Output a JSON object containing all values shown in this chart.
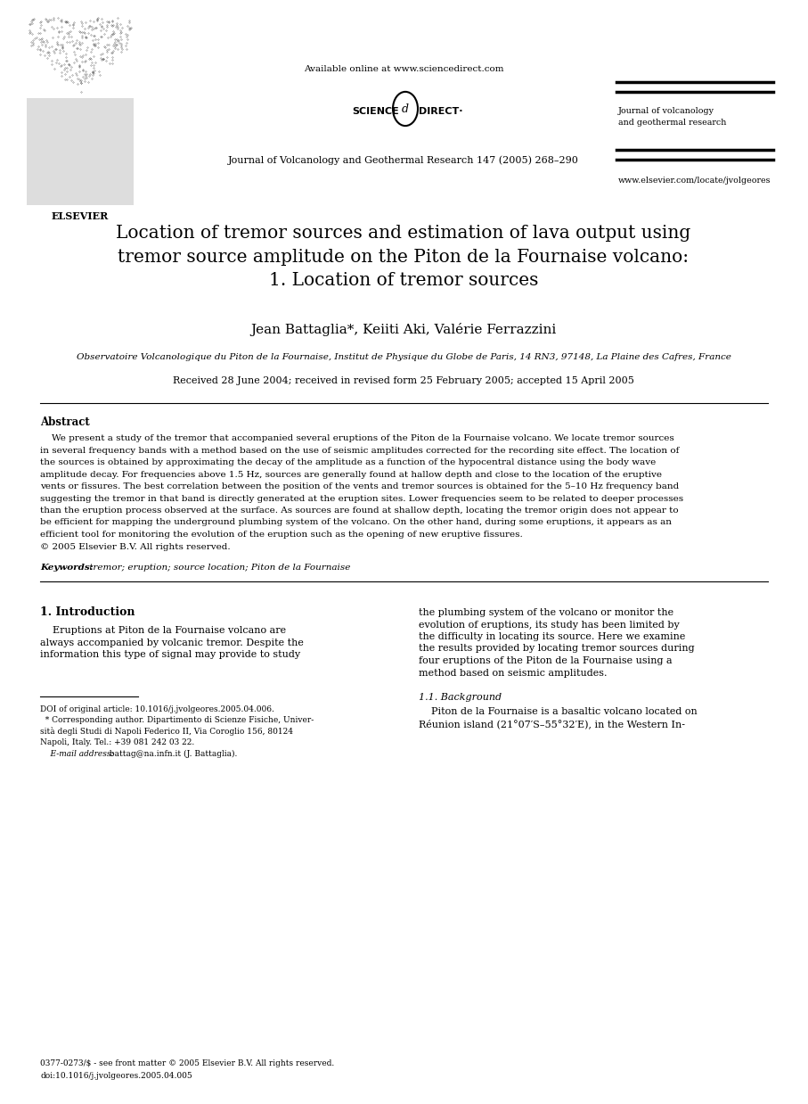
{
  "bg_color": "#ffffff",
  "header": {
    "available_online": "Available online at www.sciencedirect.com",
    "journal_line": "Journal of Volcanology and Geothermal Research 147 (2005) 268–290",
    "journal_name_right": "Journal of volcanology\nand geothermal research",
    "website": "www.elsevier.com/locate/jvolgeores"
  },
  "title": "Location of tremor sources and estimation of lava output using\ntremor source amplitude on the Piton de la Fournaise volcano:\n1. Location of tremor sources",
  "authors": "Jean Battaglia*, Keiiti Aki, Valérie Ferrazzini",
  "affiliation": "Observatoire Volcanologique du Piton de la Fournaise, Institut de Physique du Globe de Paris, 14 RN3, 97148, La Plaine des Cafres, France",
  "received": "Received 28 June 2004; received in revised form 25 February 2005; accepted 15 April 2005",
  "abstract_title": "Abstract",
  "abstract_text": "    We present a study of the tremor that accompanied several eruptions of the Piton de la Fournaise volcano. We locate tremor sources in several frequency bands with a method based on the use of seismic amplitudes corrected for the recording site effect. The location of the sources is obtained by approximating the decay of the amplitude as a function of the hypocentral distance using the body wave amplitude decay. For frequencies above 1.5 Hz, sources are generally found at hallow depth and close to the location of the eruptive vents or fissures. The best correlation between the position of the vents and tremor sources is obtained for the 5–10 Hz frequency band suggesting the tremor in that band is directly generated at the eruption sites. Lower frequencies seem to be related to deeper processes than the eruption process observed at the surface. As sources are found at shallow depth, locating the tremor origin does not appear to be efficient for mapping the underground plumbing system of the volcano. On the other hand, during some eruptions, it appears as an efficient tool for monitoring the evolution of the eruption such as the opening of new eruptive fissures.\n© 2005 Elsevier B.V. All rights reserved.",
  "keywords_label": "Keywords:",
  "keywords_text": " tremor; eruption; source location; Piton de la Fournaise",
  "section1_title": "1. Introduction",
  "intro_col1_line1": "    Eruptions at Piton de la Fournaise volcano are",
  "intro_col1_line2": "always accompanied by volcanic tremor. Despite the",
  "intro_col1_line3": "information this type of signal may provide to study",
  "intro_col2_line1": "the plumbing system of the volcano or monitor the",
  "intro_col2_line2": "evolution of eruptions, its study has been limited by",
  "intro_col2_line3": "the difficulty in locating its source. Here we examine",
  "intro_col2_line4": "the results provided by locating tremor sources during",
  "intro_col2_line5": "four eruptions of the Piton de la Fournaise using a",
  "intro_col2_line6": "method based on seismic amplitudes.",
  "subsection_title": "1.1. Background",
  "subsec_col2_line1": "    Piton de la Fournaise is a basaltic volcano located on",
  "subsec_col2_line2": "Réunion island (21°07′S–55°32′E), in the Western In-",
  "footnote_doi": "DOI of original article: 10.1016/j.jvolgeores.2005.04.006.",
  "footnote_star": "  * Corresponding author. Dipartimento di Scienze Fisiche, Univer-",
  "footnote_univ": "sità degli Studi di Napoli Federico II, Via Coroglio 156, 80124",
  "footnote_city": "Napoli, Italy. Tel.: +39 081 242 03 22.",
  "footnote_email_label": "    E-mail address:",
  "footnote_email_value": " battag@na.infn.it (J. Battaglia).",
  "bottom_issn": "0377-0273/$ - see front matter © 2005 Elsevier B.V. All rights reserved.",
  "bottom_doi": "doi:10.1016/j.jvolgeores.2005.04.005"
}
